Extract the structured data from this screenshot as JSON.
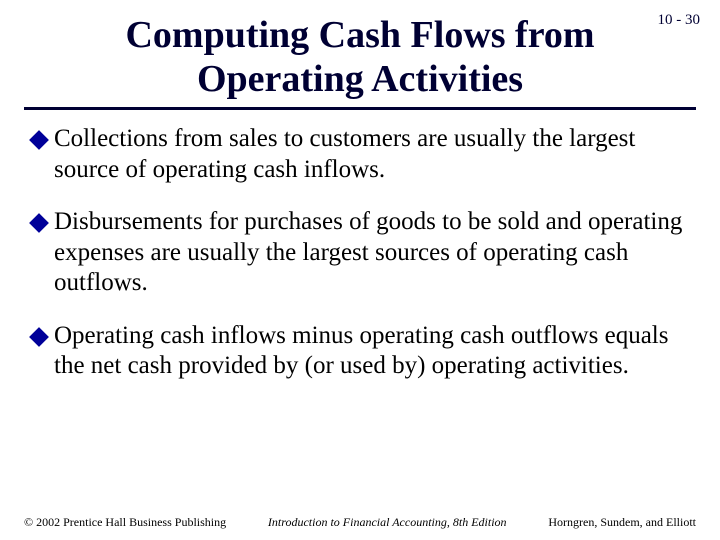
{
  "page_number": "10 - 30",
  "title": "Computing Cash Flows from Operating Activities",
  "colors": {
    "title_color": "#000033",
    "bullet_diamond": "#000099",
    "body_text": "#000000",
    "background": "#ffffff",
    "underline": "#000033"
  },
  "typography": {
    "title_fontsize": 38,
    "body_fontsize": 25,
    "footer_fontsize": 12,
    "page_number_fontsize": 15,
    "font_family": "Times New Roman"
  },
  "bullets": [
    {
      "lead": "Collections",
      "rest": " from sales to customers are usually the largest source of operating cash inflows."
    },
    {
      "lead": "Disbursements",
      "rest": " for purchases of goods to be sold and operating expenses are usually the largest sources of operating cash outflows."
    },
    {
      "lead": "Operating",
      "rest": " cash inflows minus operating cash outflows equals the net cash provided by (or used by) operating activities."
    }
  ],
  "footer": {
    "left": "© 2002 Prentice Hall Business Publishing",
    "center": "Introduction to Financial Accounting, 8th Edition",
    "right": "Horngren, Sundem, and Elliott"
  }
}
